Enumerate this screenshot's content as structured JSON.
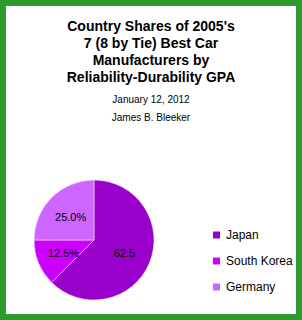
{
  "chart_data": {
    "type": "pie",
    "title": "Country Shares of 2005's\n7 (8 by Tie) Best Car\nManufacturers by\nReliability-Durability GPA",
    "subtitle": "January 12, 2012\n\nJames B. Bleeker",
    "categories": [
      "Japan",
      "South Korea",
      "Germany"
    ],
    "values": [
      62.5,
      12.5,
      25.0
    ],
    "value_labels": [
      "62.5",
      "12.5%",
      "25.0%"
    ],
    "colors": [
      "#9900cc",
      "#cc00ff",
      "#cc66ff"
    ],
    "data_labels": true,
    "legend": "right"
  }
}
